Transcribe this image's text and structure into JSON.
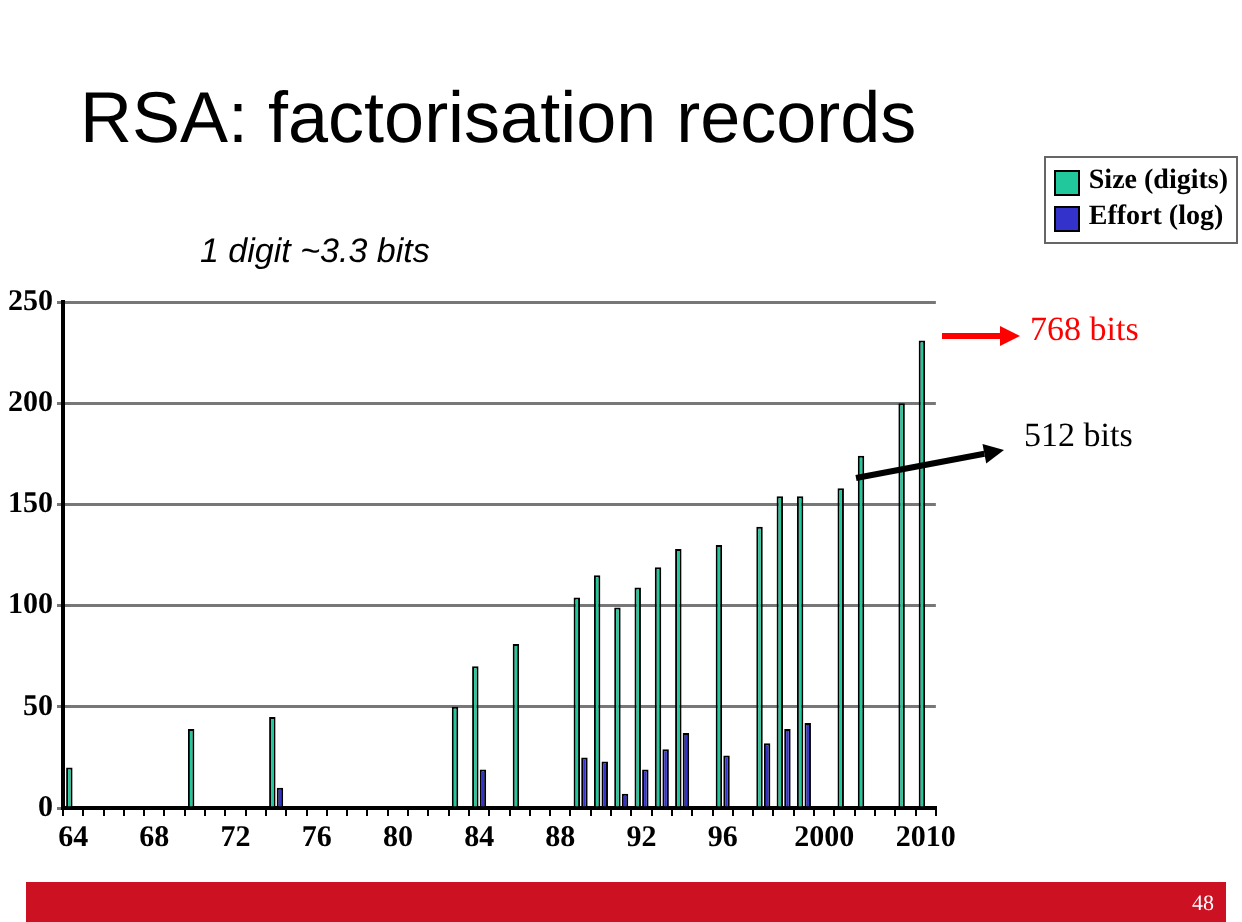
{
  "chart_data": {
    "type": "bar",
    "title": "RSA: factorisation records",
    "categories": [
      "64",
      null,
      null,
      null,
      "68",
      null,
      null,
      null,
      "72",
      null,
      null,
      null,
      "76",
      null,
      null,
      null,
      "80",
      null,
      null,
      null,
      "84",
      null,
      null,
      null,
      "88",
      null,
      null,
      null,
      "92",
      null,
      null,
      null,
      "96",
      null,
      null,
      null,
      null,
      "2000",
      null,
      null,
      null,
      null,
      "2010"
    ],
    "series": [
      {
        "name": "Size (digits)",
        "color": "#20c89c",
        "values": [
          20,
          null,
          null,
          null,
          null,
          null,
          39,
          null,
          null,
          null,
          45,
          null,
          null,
          null,
          null,
          null,
          null,
          null,
          null,
          50,
          70,
          null,
          81,
          null,
          null,
          104,
          115,
          99,
          109,
          119,
          128,
          null,
          130,
          null,
          139,
          154,
          154,
          null,
          158,
          174,
          null,
          200,
          231
        ]
      },
      {
        "name": "Effort (log)",
        "color": "#3333cc",
        "values": [
          null,
          null,
          null,
          null,
          null,
          null,
          null,
          null,
          null,
          null,
          10,
          null,
          null,
          null,
          null,
          null,
          null,
          null,
          null,
          null,
          19,
          null,
          null,
          null,
          null,
          25,
          23,
          7,
          19,
          29,
          37,
          null,
          26,
          null,
          32,
          39,
          42,
          null,
          null,
          null,
          null,
          null,
          null
        ]
      }
    ],
    "ylim": [
      0,
      250
    ],
    "yticks": [
      0,
      50,
      100,
      150,
      200,
      250
    ],
    "grid": "y",
    "legend": "top right",
    "annotations": [
      "1 digit ~3.3 bits",
      "768 bits",
      "512 bits",
      "48"
    ]
  }
}
